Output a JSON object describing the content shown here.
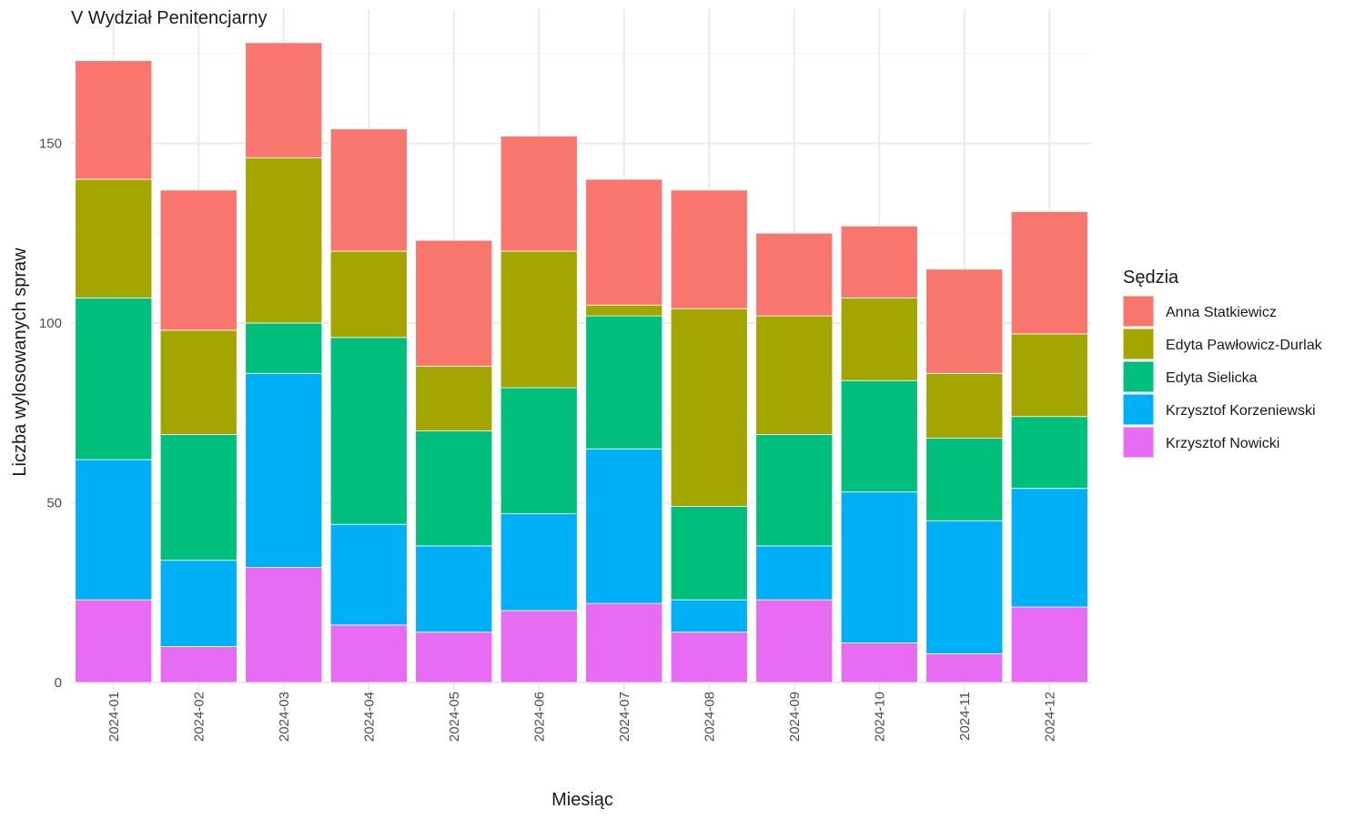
{
  "chart_data": {
    "type": "bar",
    "stacked": true,
    "title": "V Wydział Penitencjarny",
    "xlabel": "Miesiąc",
    "ylabel": "Liczba wylosowanych spraw",
    "categories": [
      "2024-01",
      "2024-02",
      "2024-03",
      "2024-04",
      "2024-05",
      "2024-06",
      "2024-07",
      "2024-08",
      "2024-09",
      "2024-10",
      "2024-11",
      "2024-12"
    ],
    "yticks": [
      0,
      50,
      100,
      150
    ],
    "ylim": [
      0,
      178
    ],
    "grid": true,
    "legend": {
      "title": "Sędzia",
      "position": "right"
    },
    "series": [
      {
        "name": "Krzysztof Nowicki",
        "color": "#E76BF3",
        "values": [
          23,
          10,
          32,
          16,
          14,
          20,
          22,
          14,
          23,
          11,
          8,
          21
        ]
      },
      {
        "name": "Krzysztof Korzeniewski",
        "color": "#00B0F6",
        "values": [
          39,
          24,
          54,
          28,
          24,
          27,
          43,
          9,
          15,
          42,
          37,
          33
        ]
      },
      {
        "name": "Edyta Sielicka",
        "color": "#00BF7D",
        "values": [
          45,
          35,
          14,
          52,
          32,
          35,
          37,
          26,
          31,
          31,
          23,
          20
        ]
      },
      {
        "name": "Edyta Pawłowicz-Durlak",
        "color": "#A3A500",
        "values": [
          33,
          29,
          46,
          24,
          18,
          38,
          3,
          55,
          33,
          23,
          18,
          23
        ]
      },
      {
        "name": "Anna Statkiewicz",
        "color": "#F8766D",
        "values": [
          33,
          39,
          32,
          34,
          35,
          32,
          35,
          33,
          23,
          20,
          29,
          34
        ]
      }
    ]
  }
}
